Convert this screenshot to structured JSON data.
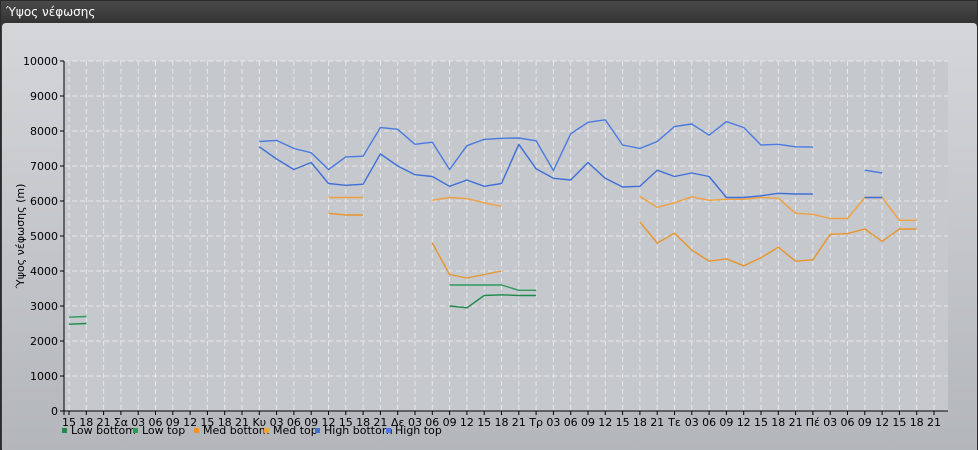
{
  "window": {
    "title": "Ύψος νέφωσης"
  },
  "colors": {
    "low_bottom": "#1e8a4a",
    "low_top": "#2d9a5c",
    "med_bottom": "#e8952c",
    "med_top": "#f0a040",
    "high_bottom": "#3e6fd8",
    "high_top": "#4a7ae0"
  },
  "chart_data": {
    "type": "line",
    "ylabel": "Ύψος νέφωσης (m)",
    "ylim": [
      0,
      10000
    ],
    "y_ticks": [
      0,
      1000,
      2000,
      3000,
      4000,
      5000,
      6000,
      7000,
      8000,
      9000,
      10000
    ],
    "x_tick_labels": [
      "15",
      "18",
      "21",
      "Σα",
      "03",
      "06",
      "09",
      "12",
      "15",
      "18",
      "21",
      "Κυ",
      "03",
      "06",
      "09",
      "12",
      "15",
      "18",
      "21",
      "Δε",
      "03",
      "06",
      "09",
      "12",
      "15",
      "18",
      "21",
      "Τρ",
      "03",
      "06",
      "09",
      "12",
      "15",
      "18",
      "21",
      "Τε",
      "03",
      "06",
      "09",
      "12",
      "15",
      "18",
      "21",
      "Πέ",
      "03",
      "06",
      "09",
      "12",
      "15",
      "18",
      "21"
    ],
    "grid": true,
    "legend_position": "bottom-left",
    "series": [
      {
        "name": "Low bottom",
        "color_key": "low_bottom",
        "segments": [
          [
            [
              0,
              2480
            ],
            [
              1,
              2500
            ]
          ],
          [
            [
              22,
              3000
            ],
            [
              23,
              2950
            ],
            [
              24,
              3300
            ],
            [
              25,
              3320
            ],
            [
              26,
              3300
            ],
            [
              27,
              3300
            ]
          ]
        ]
      },
      {
        "name": "Low top",
        "color_key": "low_top",
        "segments": [
          [
            [
              0,
              2680
            ],
            [
              1,
              2700
            ]
          ],
          [
            [
              22,
              3600
            ],
            [
              23,
              3600
            ],
            [
              24,
              3600
            ],
            [
              25,
              3600
            ],
            [
              26,
              3450
            ],
            [
              27,
              3450
            ]
          ]
        ]
      },
      {
        "name": "Med bottom",
        "color_key": "med_bottom",
        "segments": [
          [
            [
              15,
              5650
            ],
            [
              16,
              5600
            ],
            [
              17,
              5600
            ]
          ],
          [
            [
              21,
              4800
            ],
            [
              22,
              3900
            ],
            [
              23,
              3800
            ],
            [
              24,
              3900
            ],
            [
              25,
              4000
            ]
          ],
          [
            [
              33,
              5400
            ],
            [
              34,
              4800
            ],
            [
              35,
              5080
            ],
            [
              36,
              4600
            ],
            [
              37,
              4280
            ],
            [
              38,
              4350
            ],
            [
              39,
              4150
            ],
            [
              40,
              4380
            ],
            [
              41,
              4680
            ],
            [
              42,
              4280
            ],
            [
              43,
              4320
            ],
            [
              44,
              5050
            ],
            [
              45,
              5070
            ],
            [
              46,
              5200
            ],
            [
              47,
              4850
            ],
            [
              48,
              5200
            ],
            [
              49,
              5200
            ]
          ]
        ]
      },
      {
        "name": "Med top",
        "color_key": "med_top",
        "segments": [
          [
            [
              15,
              6100
            ],
            [
              16,
              6100
            ],
            [
              17,
              6100
            ]
          ],
          [
            [
              21,
              6020
            ],
            [
              22,
              6100
            ],
            [
              23,
              6070
            ],
            [
              24,
              5950
            ],
            [
              25,
              5850
            ]
          ],
          [
            [
              33,
              6130
            ],
            [
              34,
              5820
            ],
            [
              35,
              5950
            ],
            [
              36,
              6120
            ],
            [
              37,
              6020
            ],
            [
              38,
              6050
            ],
            [
              39,
              6050
            ],
            [
              40,
              6100
            ],
            [
              41,
              6080
            ],
            [
              42,
              5650
            ],
            [
              43,
              5620
            ],
            [
              44,
              5500
            ],
            [
              45,
              5500
            ],
            [
              46,
              6100
            ],
            [
              47,
              6100
            ],
            [
              48,
              5450
            ],
            [
              49,
              5450
            ]
          ]
        ]
      },
      {
        "name": "High bottom",
        "color_key": "high_bottom",
        "segments": [
          [
            [
              11,
              7550
            ],
            [
              12,
              7200
            ],
            [
              13,
              6900
            ],
            [
              14,
              7100
            ],
            [
              15,
              6500
            ],
            [
              16,
              6450
            ],
            [
              17,
              6480
            ],
            [
              18,
              7350
            ],
            [
              19,
              7000
            ],
            [
              20,
              6750
            ],
            [
              21,
              6700
            ],
            [
              22,
              6420
            ],
            [
              23,
              6600
            ],
            [
              24,
              6420
            ],
            [
              25,
              6500
            ],
            [
              26,
              7620
            ],
            [
              27,
              6920
            ],
            [
              28,
              6650
            ],
            [
              29,
              6600
            ],
            [
              30,
              7100
            ],
            [
              31,
              6650
            ],
            [
              32,
              6400
            ],
            [
              33,
              6420
            ],
            [
              34,
              6880
            ],
            [
              35,
              6700
            ],
            [
              36,
              6800
            ],
            [
              37,
              6700
            ],
            [
              38,
              6100
            ],
            [
              39,
              6100
            ],
            [
              40,
              6150
            ],
            [
              41,
              6220
            ],
            [
              42,
              6200
            ],
            [
              43,
              6200
            ]
          ],
          [
            [
              46,
              6100
            ],
            [
              47,
              6100
            ]
          ]
        ]
      },
      {
        "name": "High top",
        "color_key": "high_top",
        "segments": [
          [
            [
              11,
              7700
            ],
            [
              12,
              7730
            ],
            [
              13,
              7500
            ],
            [
              14,
              7380
            ],
            [
              15,
              6900
            ],
            [
              16,
              7260
            ],
            [
              17,
              7280
            ],
            [
              18,
              8100
            ],
            [
              19,
              8050
            ],
            [
              20,
              7620
            ],
            [
              21,
              7680
            ],
            [
              22,
              6900
            ],
            [
              23,
              7580
            ],
            [
              24,
              7760
            ],
            [
              25,
              7790
            ],
            [
              26,
              7800
            ],
            [
              27,
              7720
            ],
            [
              28,
              6870
            ],
            [
              29,
              7920
            ],
            [
              30,
              8250
            ],
            [
              31,
              8320
            ],
            [
              32,
              7600
            ],
            [
              33,
              7500
            ],
            [
              34,
              7700
            ],
            [
              35,
              8130
            ],
            [
              36,
              8200
            ],
            [
              37,
              7880
            ],
            [
              38,
              8270
            ],
            [
              39,
              8100
            ],
            [
              40,
              7600
            ],
            [
              41,
              7620
            ],
            [
              42,
              7550
            ],
            [
              43,
              7540
            ]
          ],
          [
            [
              46,
              6880
            ],
            [
              47,
              6800
            ]
          ]
        ]
      }
    ]
  }
}
